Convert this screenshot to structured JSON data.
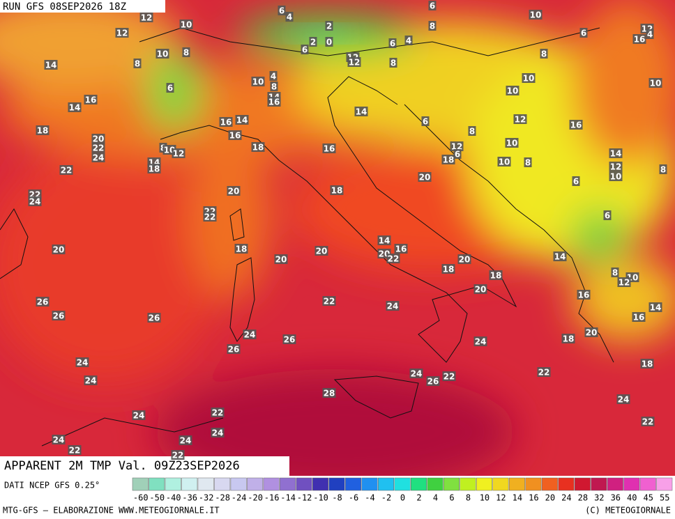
{
  "header": {
    "run": "RUN GFS 08SEP2026 18Z",
    "title": "APPARENT 2M TMP Val. 09Z23SEP2026",
    "source": "DATI NCEP GFS 0.25°"
  },
  "footer": {
    "credits": "MTG-GFS — ELABORAZIONE WWW.METEOGIORNALE.IT",
    "copyright": "(C) METEOGIORNALE"
  },
  "scale": {
    "labels": [
      -60,
      -50,
      -40,
      -36,
      -32,
      -28,
      -24,
      -20,
      -16,
      -14,
      -12,
      -10,
      -8,
      -6,
      -4,
      -2,
      0,
      2,
      4,
      6,
      8,
      10,
      12,
      14,
      16,
      20,
      24,
      28,
      32,
      36,
      40,
      45,
      55
    ],
    "colors": [
      "#a0d0b8",
      "#80e0c0",
      "#b0f0e0",
      "#d0f0f0",
      "#e0e8f0",
      "#d8d8f0",
      "#c8c8f0",
      "#c0b0e8",
      "#b090e0",
      "#9070d0",
      "#7050c0",
      "#4030b0",
      "#2040c0",
      "#2060e0",
      "#2090f0",
      "#20c0f0",
      "#20e0e0",
      "#20e080",
      "#40d040",
      "#80e040",
      "#c0f020",
      "#f0f020",
      "#f0d820",
      "#f0b020",
      "#f09020",
      "#f06020",
      "#e83020",
      "#d01830",
      "#c01850",
      "#d02080",
      "#e030b0",
      "#f060d0",
      "#f8a0e8"
    ]
  },
  "map_labels": [
    12,
    10,
    6,
    4,
    6,
    10,
    12,
    2,
    0,
    2,
    6,
    8,
    6,
    4,
    6,
    12,
    16,
    4,
    10,
    8,
    8,
    12,
    12,
    8,
    8,
    14,
    10,
    4,
    8,
    10,
    10,
    10,
    6,
    14,
    16,
    14,
    16,
    14,
    6,
    12,
    16,
    16,
    14,
    18,
    8,
    16,
    20,
    22,
    24,
    18,
    16,
    12,
    6,
    8,
    10,
    12,
    14,
    18,
    18,
    10,
    10,
    8,
    14,
    12,
    10,
    8,
    22,
    20,
    18,
    6,
    20,
    22,
    24,
    22,
    22,
    6,
    20,
    18,
    20,
    20,
    14,
    16,
    20,
    22,
    18,
    20,
    18,
    14,
    20,
    8,
    10,
    12,
    26,
    26,
    22,
    24,
    16,
    14,
    16,
    26,
    24,
    26,
    24,
    18,
    20,
    26,
    24,
    18,
    24,
    24,
    26,
    22,
    22,
    28,
    24,
    24,
    22,
    24,
    22,
    24,
    24,
    22,
    22
  ]
}
